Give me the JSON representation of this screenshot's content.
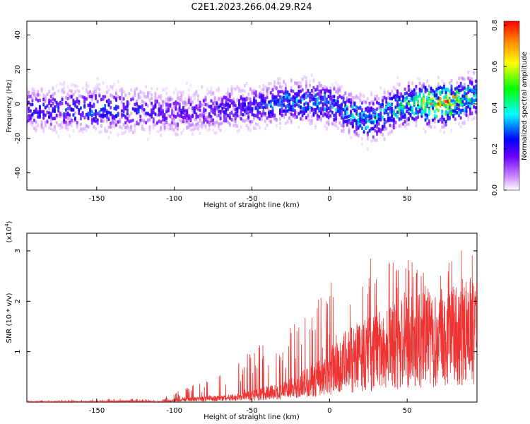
{
  "title": "C2E1.2023.266.04.29.R24",
  "colors": {
    "snr_line": "#ee3333",
    "axis": "#000000",
    "background": "#ffffff"
  },
  "chart_data": [
    {
      "type": "heatmap",
      "xlabel": "Height of straight line (km)",
      "ylabel": "Frequency (Hz)",
      "xlim": [
        -195,
        95
      ],
      "ylim": [
        -50,
        48
      ],
      "x_ticks": [
        -150,
        -100,
        -50,
        0,
        50
      ],
      "y_ticks": [
        -40,
        -20,
        0,
        20,
        40
      ],
      "colorbar": {
        "label": "Normalized spectral amplitude",
        "range": [
          0,
          0.82
        ],
        "ticks": [
          "0.0",
          "0.2",
          "0.4",
          "0.6",
          "0.8"
        ],
        "colormap": "rainbow (white-purple-blue-cyan-green-yellow-red)"
      },
      "ridge": {
        "description_x": [
          -195,
          -150,
          -100,
          -50,
          -25,
          0,
          25,
          50,
          75,
          95
        ],
        "center_freq": [
          -3,
          -3,
          -5,
          -2,
          2,
          0,
          -10,
          0,
          0,
          5
        ],
        "peak_amplitude": [
          0.2,
          0.25,
          0.15,
          0.2,
          0.3,
          0.3,
          0.35,
          0.4,
          0.7,
          0.3
        ]
      }
    },
    {
      "type": "line",
      "xlabel": "Height of straight line (km)",
      "ylabel": "SNR (10 * v/v)",
      "yscale_label": "(x10",
      "yscale_exp": "4",
      "yscale_close": ")",
      "xlim": [
        -195,
        95
      ],
      "ylim": [
        0,
        3.35
      ],
      "x_ticks": [
        -150,
        -100,
        -50,
        0,
        50
      ],
      "y_ticks": [
        1,
        2,
        3
      ],
      "envelope": {
        "x": [
          -195,
          -150,
          -130,
          -110,
          -100,
          -90,
          -75,
          -60,
          -50,
          -40,
          -30,
          -20,
          -10,
          0,
          10,
          20,
          30,
          40,
          50,
          60,
          70,
          80,
          90,
          95
        ],
        "median": [
          0.01,
          0.01,
          0.02,
          0.01,
          0.03,
          0.06,
          0.08,
          0.1,
          0.15,
          0.2,
          0.25,
          0.35,
          0.5,
          0.7,
          0.9,
          1.0,
          1.1,
          1.2,
          1.3,
          1.35,
          1.4,
          1.45,
          1.5,
          1.4
        ],
        "max": [
          0.03,
          0.06,
          0.08,
          0.04,
          0.2,
          0.35,
          0.45,
          0.8,
          1.05,
          1.2,
          1.4,
          1.7,
          2.0,
          2.4,
          2.7,
          2.95,
          2.8,
          2.8,
          2.9,
          2.6,
          2.7,
          3.0,
          3.35,
          2.5
        ]
      }
    }
  ]
}
